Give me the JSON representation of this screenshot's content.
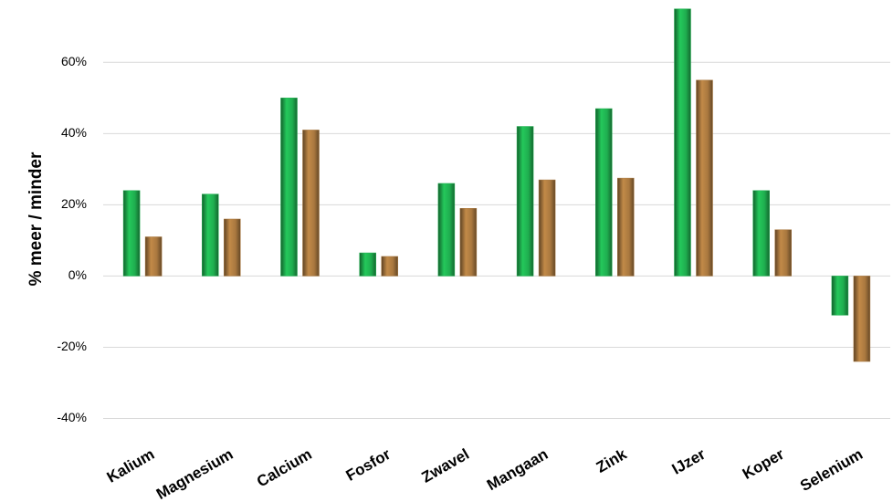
{
  "chart_data": {
    "type": "bar",
    "y_label": "% meer / minder",
    "categories": [
      "Kalium",
      "Magnesium",
      "Calcium",
      "Fosfor",
      "Zwavel",
      "Mangaan",
      "Zink",
      "IJzer",
      "Koper",
      "Selenium"
    ],
    "series": [
      {
        "color": "#1fae4f",
        "values": [
          24,
          23,
          50,
          6.5,
          26,
          42,
          47,
          75,
          24,
          -11
        ]
      },
      {
        "color": "#a9783f",
        "values": [
          11,
          16,
          41,
          5.5,
          19,
          27,
          27.5,
          55,
          13,
          -24
        ]
      }
    ],
    "ylim": [
      -45,
      77.5
    ],
    "yticks": [
      {
        "value": -40,
        "label": "-40%"
      },
      {
        "value": -20,
        "label": "-20%"
      },
      {
        "value": 0,
        "label": "0%"
      },
      {
        "value": 20,
        "label": "20%"
      },
      {
        "value": 40,
        "label": "40%"
      },
      {
        "value": 60,
        "label": "60%"
      }
    ],
    "grid": true
  }
}
